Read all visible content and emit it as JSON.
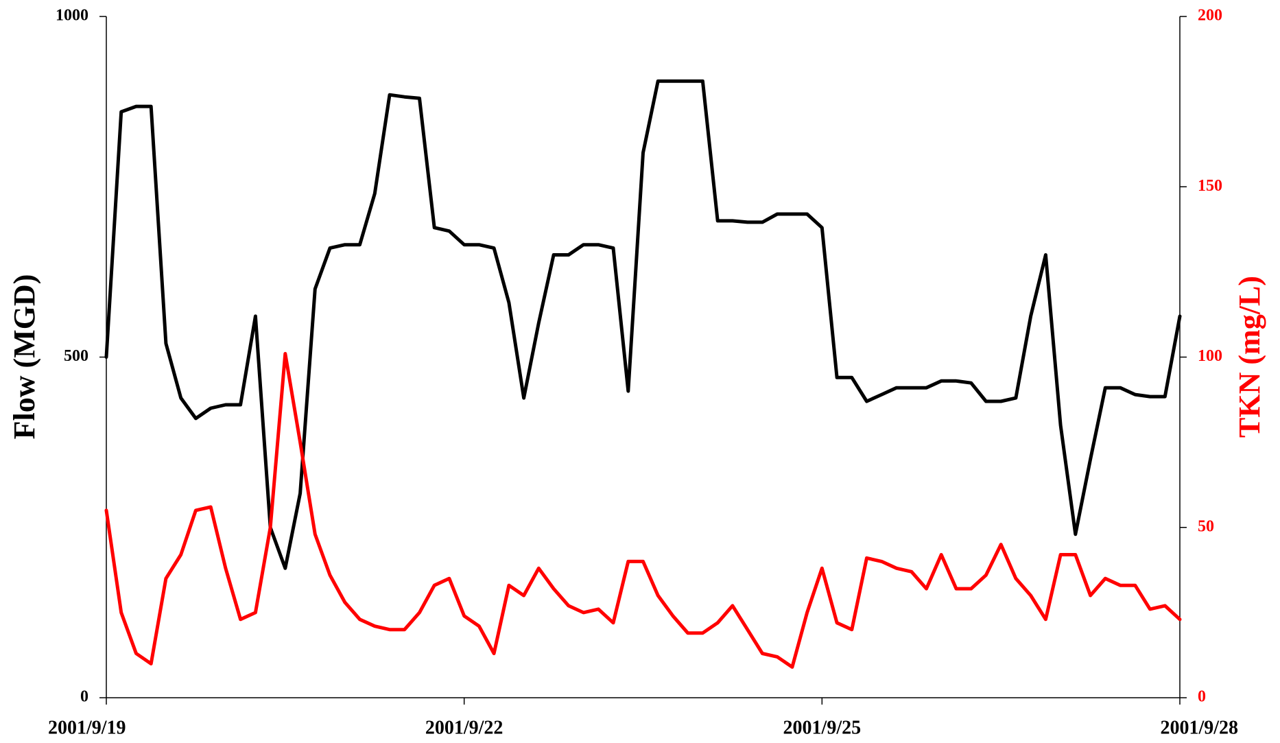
{
  "chart_data": {
    "type": "line",
    "ylabel": "Flow (MGD)",
    "y2label": "TKN (mg/L)",
    "x": [
      19,
      19.125,
      19.25,
      19.375,
      19.5,
      19.625,
      19.75,
      19.875,
      20,
      20.125,
      20.25,
      20.375,
      20.5,
      20.625,
      20.75,
      20.875,
      21,
      21.125,
      21.25,
      21.375,
      21.5,
      21.625,
      21.75,
      21.875,
      22,
      22.125,
      22.25,
      22.375,
      22.5,
      22.625,
      22.75,
      22.875,
      23,
      23.125,
      23.25,
      23.375,
      23.5,
      23.625,
      23.75,
      23.875,
      24,
      24.125,
      24.25,
      24.375,
      24.5,
      24.625,
      24.75,
      24.875,
      25,
      25.125,
      25.25,
      25.375,
      25.5,
      25.625,
      25.75,
      25.875,
      26,
      26.125,
      26.25,
      26.375,
      26.5,
      26.625,
      26.75,
      26.875,
      27,
      27.125,
      27.25,
      27.375,
      27.5,
      27.625,
      27.75,
      27.875,
      28
    ],
    "xlim": [
      19,
      28
    ],
    "xticks": [
      {
        "value": 19,
        "label": "2001/9/19"
      },
      {
        "value": 22,
        "label": "2001/9/22"
      },
      {
        "value": 25,
        "label": "2001/9/25"
      },
      {
        "value": 28,
        "label": "2001/9/28"
      }
    ],
    "ylim": [
      0,
      1000
    ],
    "yticks": [
      0,
      500,
      1000
    ],
    "y2lim": [
      0,
      200
    ],
    "y2ticks": [
      0,
      50,
      100,
      150,
      200
    ],
    "series": [
      {
        "color": "#000000",
        "values": [
          500,
          860,
          868,
          868,
          520,
          440,
          410,
          425,
          430,
          430,
          560,
          250,
          190,
          300,
          600,
          660,
          665,
          665,
          740,
          885,
          882,
          880,
          690,
          685,
          665,
          665,
          660,
          580,
          440,
          550,
          650,
          650,
          665,
          665,
          660,
          450,
          800,
          905,
          905,
          905,
          905,
          700,
          700,
          698,
          698,
          710,
          710,
          710,
          690,
          470,
          470,
          435,
          445,
          455,
          455,
          455,
          465,
          465,
          462,
          435,
          435,
          440,
          560,
          650,
          400,
          240,
          350,
          455,
          455,
          445,
          442,
          442,
          560
        ]
      },
      {
        "color": "#ff0000",
        "axis": "y2",
        "values": [
          55,
          25,
          13,
          10,
          35,
          42,
          55,
          56,
          38,
          23,
          25,
          50,
          101,
          75,
          48,
          36,
          28,
          23,
          21,
          20,
          20,
          25,
          33,
          35,
          24,
          21,
          13,
          33,
          30,
          38,
          32,
          27,
          25,
          26,
          22,
          40,
          40,
          30,
          24,
          19,
          19,
          22,
          27,
          20,
          13,
          12,
          9,
          25,
          38,
          22,
          20,
          41,
          40,
          38,
          37,
          32,
          42,
          32,
          32,
          36,
          45,
          35,
          30,
          23,
          42,
          42,
          30,
          35,
          33,
          33,
          26,
          27,
          23
        ]
      }
    ]
  }
}
